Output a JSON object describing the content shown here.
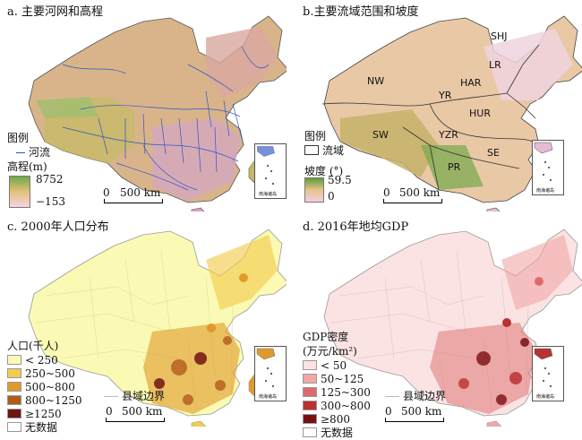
{
  "panels": {
    "a": {
      "title": "a. 主要河网和高程",
      "legend_header": "图例",
      "river_label": "河流",
      "elev_label": "高程(m)",
      "elev_max": "8752",
      "elev_min": "−153",
      "scale": "500 km",
      "scale_zero": "0"
    },
    "b": {
      "title": "b.主要流域范围和坡度",
      "legend_header": "图例",
      "basin_label": "流域",
      "slope_label": "坡度 (°)",
      "slope_max": "59.5",
      "slope_min": "0",
      "scale": "500 km",
      "scale_zero": "0",
      "basins": [
        "SHJ",
        "LR",
        "HAR",
        "NW",
        "YR",
        "HUR",
        "SW",
        "YZR",
        "SE",
        "PR"
      ]
    },
    "c": {
      "title": "c. 2000年人口分布",
      "legend_title": "人口(千人)",
      "classes": [
        "< 250",
        "250~500",
        "500~800",
        "800~1250",
        "≥1250",
        "无数据"
      ],
      "county_border": "县域边界",
      "scale": "500 km",
      "scale_zero": "0"
    },
    "d": {
      "title": "d. 2016年地均GDP",
      "legend_title_1": "GDP密度",
      "legend_title_2": "(万元/km²)",
      "classes": [
        "< 50",
        "50~125",
        "125~300",
        "300~800",
        "≥800",
        "无数据"
      ],
      "county_border": "县域边界",
      "scale": "500 km",
      "scale_zero": "0"
    }
  },
  "inset_label": "南海诸岛",
  "colors": {
    "pop": [
      "#fafab4",
      "#f2cc50",
      "#e09a2a",
      "#b35a1a",
      "#6e1414",
      "#ffffff"
    ],
    "gdp": [
      "#fbe3e3",
      "#f2a6a6",
      "#de6b6b",
      "#b83232",
      "#7a0f0f",
      "#ffffff"
    ],
    "elev_high": "#6fa84a",
    "elev_low": "#f3d3e6",
    "river": "#2e55c8",
    "slope_high": "#5e9c3a",
    "slope_low": "#f3cde0"
  }
}
